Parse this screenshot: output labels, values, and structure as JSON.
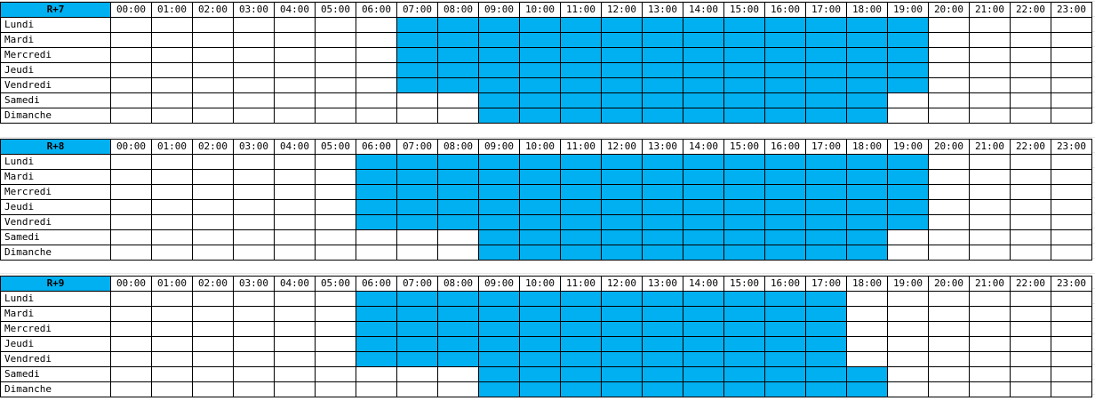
{
  "hours": [
    "00:00",
    "01:00",
    "02:00",
    "03:00",
    "04:00",
    "05:00",
    "06:00",
    "07:00",
    "08:00",
    "09:00",
    "10:00",
    "11:00",
    "12:00",
    "13:00",
    "14:00",
    "15:00",
    "16:00",
    "17:00",
    "18:00",
    "19:00",
    "20:00",
    "21:00",
    "22:00",
    "23:00"
  ],
  "days": [
    "Lundi",
    "Mardi",
    "Mercredi",
    "Jeudi",
    "Vendredi",
    "Samedi",
    "Dimanche"
  ],
  "colors": {
    "active": "#00b0f0",
    "grid": "#d4d4d4",
    "border": "#000000"
  },
  "schedules": [
    {
      "title": "R+7",
      "active_hours": [
        [
          7,
          19
        ],
        [
          7,
          19
        ],
        [
          7,
          19
        ],
        [
          7,
          19
        ],
        [
          7,
          19
        ],
        [
          9,
          18
        ],
        [
          9,
          18
        ]
      ]
    },
    {
      "title": "R+8",
      "active_hours": [
        [
          6,
          19
        ],
        [
          6,
          19
        ],
        [
          6,
          19
        ],
        [
          6,
          19
        ],
        [
          6,
          19
        ],
        [
          9,
          18
        ],
        [
          9,
          18
        ]
      ]
    },
    {
      "title": "R+9",
      "active_hours": [
        [
          6,
          17
        ],
        [
          6,
          17
        ],
        [
          6,
          17
        ],
        [
          6,
          17
        ],
        [
          6,
          17
        ],
        [
          9,
          18
        ],
        [
          9,
          18
        ]
      ]
    }
  ]
}
